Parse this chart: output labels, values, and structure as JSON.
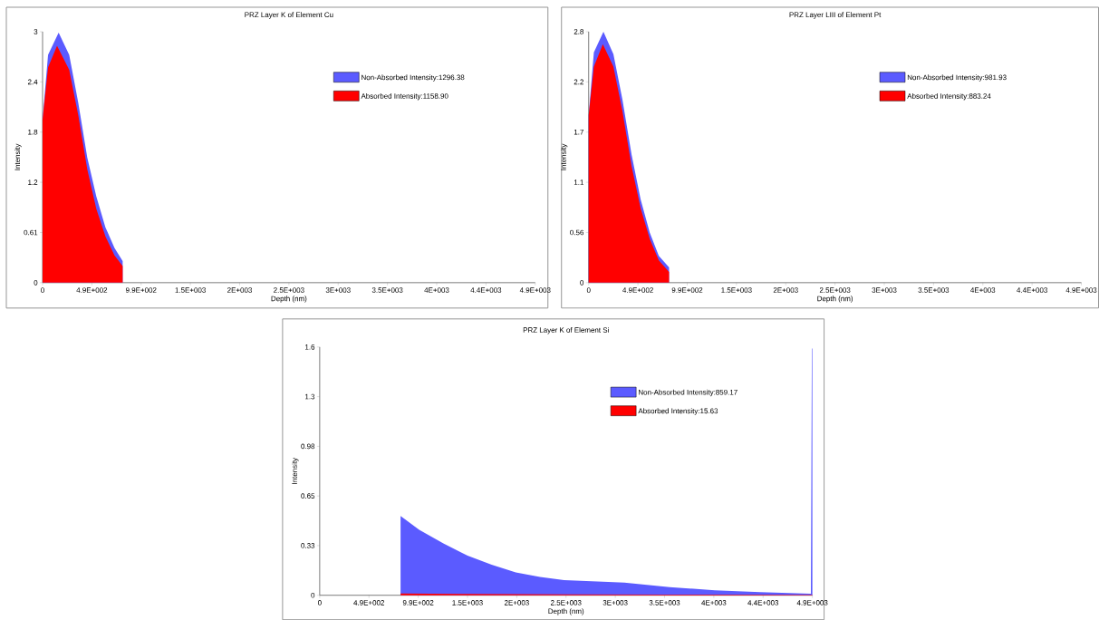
{
  "chart_data": [
    {
      "type": "area",
      "title": "PRZ Layer K of Element Cu",
      "xlabel": "Depth (nm)",
      "ylabel": "Intensity",
      "legend": "top right",
      "xlim": [
        0,
        4940
      ],
      "ylim": [
        0,
        3.03
      ],
      "xticks": [
        0,
        {
          "value": 494,
          "label": "4.9E+002"
        },
        {
          "value": 988,
          "label": "9.9E+002"
        },
        {
          "value": 1482,
          "label": "1.5E+003"
        },
        {
          "value": 1976,
          "label": "2E+003"
        },
        {
          "value": 2470,
          "label": "2.5E+003"
        },
        {
          "value": 2964,
          "label": "3E+003"
        },
        {
          "value": 3458,
          "label": "3.5E+003"
        },
        {
          "value": 3952,
          "label": "4E+003"
        },
        {
          "value": 4446,
          "label": "4.4E+003"
        },
        {
          "value": 4940,
          "label": "4.9E+003"
        }
      ],
      "yticks": [
        0,
        {
          "value": 0.606,
          "label": "0.61"
        },
        {
          "value": 1.212,
          "label": "1.2"
        },
        {
          "value": 1.818,
          "label": "1.8"
        },
        {
          "value": 2.424,
          "label": "2.4"
        },
        {
          "value": 3.03,
          "label": "3"
        }
      ],
      "series": [
        {
          "name": "Non-Absorbed Intensity:1296.38",
          "color": "#5b5bff",
          "x": [
            0,
            55,
            161,
            267,
            358,
            448,
            539,
            630,
            721,
            803
          ],
          "values": [
            1.97,
            2.75,
            3.02,
            2.75,
            2.17,
            1.51,
            1.04,
            0.67,
            0.42,
            0.26
          ]
        },
        {
          "name": "Absorbed Intensity:1158.90",
          "color": "#ff0000",
          "x": [
            0,
            55,
            145,
            267,
            358,
            448,
            539,
            630,
            721,
            803
          ],
          "values": [
            1.97,
            2.6,
            2.86,
            2.57,
            2.02,
            1.37,
            0.89,
            0.56,
            0.33,
            0.2
          ]
        }
      ]
    },
    {
      "type": "area",
      "title": "PRZ Layer LIII of Element Pt",
      "xlabel": "Depth (nm)",
      "ylabel": "Intensity",
      "legend": "top right",
      "xlim": [
        0,
        4940
      ],
      "ylim": [
        0,
        2.8
      ],
      "xticks": [
        0,
        {
          "value": 494,
          "label": "4.9E+002"
        },
        {
          "value": 988,
          "label": "9.9E+002"
        },
        {
          "value": 1482,
          "label": "1.5E+003"
        },
        {
          "value": 1976,
          "label": "2E+003"
        },
        {
          "value": 2470,
          "label": "2.5E+003"
        },
        {
          "value": 2964,
          "label": "3E+003"
        },
        {
          "value": 3458,
          "label": "3.5E+003"
        },
        {
          "value": 3952,
          "label": "4E+003"
        },
        {
          "value": 4446,
          "label": "4.4E+003"
        },
        {
          "value": 4940,
          "label": "4.9E+003"
        }
      ],
      "yticks": [
        0,
        {
          "value": 0.56,
          "label": "0.56"
        },
        {
          "value": 1.12,
          "label": "1.1"
        },
        {
          "value": 1.68,
          "label": "1.7"
        },
        {
          "value": 2.24,
          "label": "2.2"
        },
        2.8
      ],
      "series": [
        {
          "name": "Non-Absorbed Intensity:981.93",
          "color": "#5b5bff",
          "x": [
            0,
            52,
            148,
            248,
            339,
            430,
            521,
            612,
            703,
            806
          ],
          "values": [
            1.87,
            2.57,
            2.8,
            2.55,
            2.04,
            1.43,
            0.93,
            0.56,
            0.3,
            0.17
          ]
        },
        {
          "name": "Absorbed Intensity:883.24",
          "color": "#ff0000",
          "x": [
            0,
            52,
            142,
            248,
            339,
            430,
            521,
            612,
            703,
            806
          ],
          "values": [
            1.87,
            2.41,
            2.66,
            2.41,
            1.91,
            1.3,
            0.83,
            0.49,
            0.25,
            0.12
          ]
        }
      ]
    },
    {
      "type": "area",
      "title": "PRZ Layer K of Element Si",
      "xlabel": "Depth (nm)",
      "ylabel": "Intensity",
      "legend": "top right",
      "xlim": [
        0,
        4940
      ],
      "ylim": [
        0,
        1.63
      ],
      "xticks": [
        0,
        {
          "value": 494,
          "label": "4.9E+002"
        },
        {
          "value": 988,
          "label": "9.9E+002"
        },
        {
          "value": 1482,
          "label": "1.5E+003"
        },
        {
          "value": 1976,
          "label": "2E+003"
        },
        {
          "value": 2470,
          "label": "2.5E+003"
        },
        {
          "value": 2964,
          "label": "3E+003"
        },
        {
          "value": 3458,
          "label": "3.5E+003"
        },
        {
          "value": 3952,
          "label": "4E+003"
        },
        {
          "value": 4446,
          "label": "4.4E+003"
        },
        {
          "value": 4940,
          "label": "4.9E+003"
        }
      ],
      "yticks": [
        0,
        {
          "value": 0.326,
          "label": "0.33"
        },
        {
          "value": 0.652,
          "label": "0.65"
        },
        {
          "value": 0.978,
          "label": "0.98"
        },
        {
          "value": 1.304,
          "label": "1.3"
        },
        {
          "value": 1.63,
          "label": "1.6"
        }
      ],
      "series": [
        {
          "name": "Non-Absorbed Intensity:859.17",
          "color": "#5b5bff",
          "x": [
            811,
            998,
            1240,
            1483,
            1724,
            1966,
            2209,
            2450,
            2783,
            3055,
            3509,
            3962,
            4416,
            4925,
            4935,
            4940
          ],
          "values": [
            0.52,
            0.43,
            0.34,
            0.26,
            0.2,
            0.15,
            0.12,
            0.1,
            0.09,
            0.083,
            0.054,
            0.033,
            0.02,
            0.01,
            1.62,
            1.62
          ]
        },
        {
          "name": "Absorbed Intensity:15.63",
          "color": "#ff0000",
          "x": [
            811,
            1500,
            2500,
            3500,
            4900,
            4940
          ],
          "values": [
            0.012,
            0.008,
            0.005,
            0.004,
            0.003,
            0.003
          ]
        }
      ]
    }
  ]
}
